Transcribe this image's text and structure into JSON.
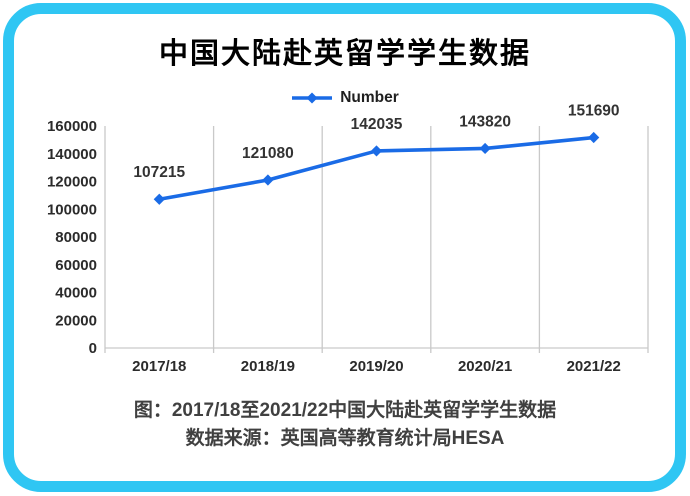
{
  "title": "中国大陆赴英留学学生数据",
  "caption": {
    "line1": "图：2017/18至2021/22中国大陆赴英留学学生数据",
    "line2": "数据来源：英国高等教育统计局HESA"
  },
  "colors": {
    "frame_border": "#2fc6f3",
    "series_line": "#1a6be6",
    "gridline": "#c9c9c9",
    "axis_line": "#c9c9c9",
    "axis_label": "#2b2b2b",
    "data_label": "#333333",
    "title_text": "#000000",
    "caption_text": "#404040"
  },
  "chart_data": {
    "type": "line",
    "title": "中国大陆赴英留学学生数据",
    "categories": [
      "2017/18",
      "2018/19",
      "2019/20",
      "2020/21",
      "2021/22"
    ],
    "series": [
      {
        "name": "Number",
        "values": [
          107215,
          121080,
          142035,
          143820,
          151690
        ]
      }
    ],
    "xlabel": "",
    "ylabel": "",
    "ylim": [
      0,
      160000
    ],
    "yticks": [
      0,
      20000,
      40000,
      60000,
      80000,
      100000,
      120000,
      140000,
      160000
    ],
    "grid": "vertical-only",
    "marker": "diamond",
    "data_labels_shown": true,
    "legend_position": "top-center"
  }
}
